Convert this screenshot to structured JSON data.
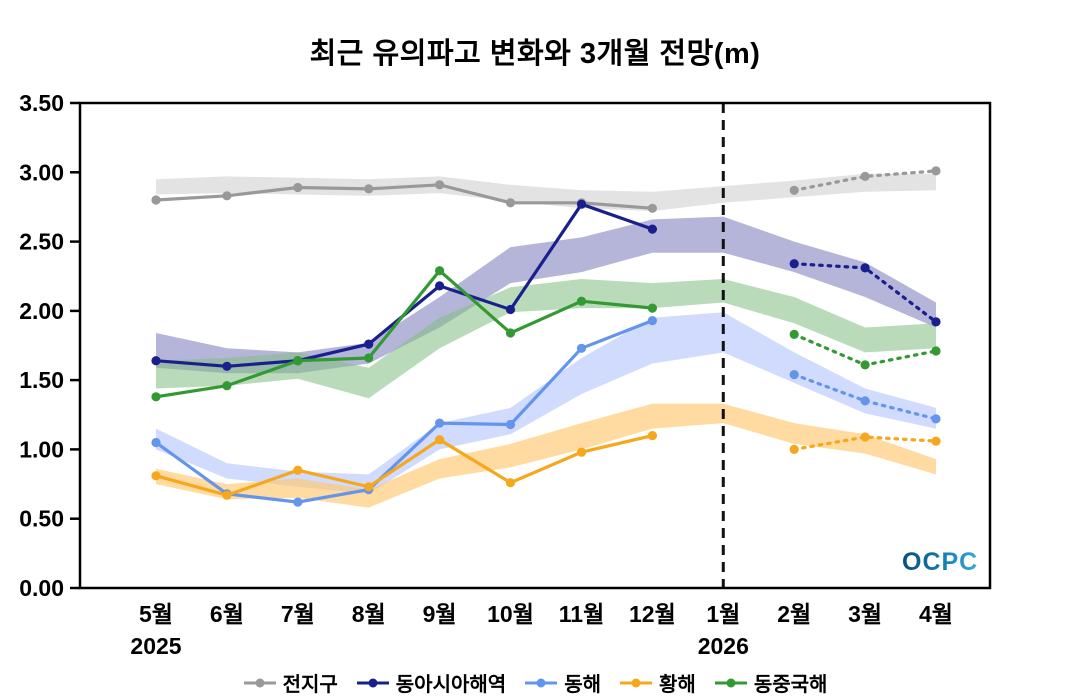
{
  "title": "최근 유의파고 변화와 3개월 전망(m)",
  "logo_text": "OCPC",
  "chart_data": {
    "type": "line",
    "title": "최근 유의파고 변화와 3개월 전망(m)",
    "x": [
      "5월",
      "6월",
      "7월",
      "8월",
      "9월",
      "10월",
      "11월",
      "12월",
      "1월",
      "2월",
      "3월",
      "4월"
    ],
    "year_labels": [
      {
        "index": 0,
        "label": "2025"
      },
      {
        "index": 8,
        "label": "2026"
      }
    ],
    "ylim": [
      0,
      3.5
    ],
    "yticks": [
      "0.00",
      "0.50",
      "1.00",
      "1.50",
      "2.00",
      "2.50",
      "3.00",
      "3.50"
    ],
    "forecast_divider_index": 8,
    "forecast_start_index": 9,
    "legend_position": "bottom",
    "grid": false,
    "series": [
      {
        "name": "전지구",
        "key": "global",
        "color": "#999999",
        "band_color": "rgba(204,204,204,0.55)",
        "observed": [
          2.8,
          2.83,
          2.89,
          2.88,
          2.91,
          2.78,
          2.78,
          2.74
        ],
        "forecast": [
          2.87,
          2.97,
          3.01
        ],
        "band_low": [
          2.84,
          2.85,
          2.84,
          2.83,
          2.85,
          2.79,
          2.74,
          2.72,
          2.78,
          2.82,
          2.86,
          2.87
        ],
        "band_high": [
          2.95,
          2.97,
          2.96,
          2.95,
          2.97,
          2.91,
          2.87,
          2.86,
          2.9,
          2.94,
          2.99,
          2.99
        ]
      },
      {
        "name": "동아시아해역",
        "key": "east-asia",
        "color": "#1a1f8e",
        "band_color": "rgba(120,120,185,0.55)",
        "observed": [
          1.64,
          1.6,
          1.64,
          1.76,
          2.18,
          2.01,
          2.77,
          2.59
        ],
        "forecast": [
          2.34,
          2.31,
          1.92
        ],
        "band_low": [
          1.59,
          1.55,
          1.55,
          1.62,
          1.88,
          2.2,
          2.28,
          2.42,
          2.42,
          2.28,
          2.1,
          1.88
        ],
        "band_high": [
          1.84,
          1.73,
          1.7,
          1.77,
          2.1,
          2.46,
          2.53,
          2.66,
          2.68,
          2.5,
          2.35,
          2.06
        ]
      },
      {
        "name": "동해",
        "key": "east-sea",
        "color": "#6495ed",
        "band_color": "rgba(150,175,250,0.45)",
        "observed": [
          1.05,
          0.68,
          0.62,
          0.71,
          1.19,
          1.18,
          1.73,
          1.93
        ],
        "forecast": [
          1.54,
          1.35,
          1.22
        ],
        "band_low": [
          1.0,
          0.79,
          0.73,
          0.68,
          1.0,
          1.11,
          1.4,
          1.62,
          1.7,
          1.48,
          1.26,
          1.15
        ],
        "band_high": [
          1.15,
          0.9,
          0.84,
          0.82,
          1.19,
          1.3,
          1.66,
          1.95,
          1.99,
          1.7,
          1.44,
          1.3
        ]
      },
      {
        "name": "황해",
        "key": "yellow-sea",
        "color": "#f7a71b",
        "band_color": "rgba(255,200,110,0.65)",
        "observed": [
          0.81,
          0.67,
          0.85,
          0.73,
          1.07,
          0.76,
          0.98,
          1.1
        ],
        "forecast": [
          1.0,
          1.09,
          1.06
        ],
        "band_low": [
          0.75,
          0.64,
          0.65,
          0.58,
          0.79,
          0.87,
          1.0,
          1.15,
          1.19,
          1.04,
          0.97,
          0.82
        ],
        "band_high": [
          0.86,
          0.75,
          0.79,
          0.71,
          0.93,
          1.04,
          1.19,
          1.33,
          1.33,
          1.19,
          1.11,
          0.93
        ]
      },
      {
        "name": "동중국해",
        "key": "east-china-sea",
        "color": "#339933",
        "band_color": "rgba(130,190,130,0.55)",
        "observed": [
          1.38,
          1.46,
          1.64,
          1.66,
          2.29,
          1.84,
          2.07,
          2.02
        ],
        "forecast": [
          1.83,
          1.61,
          1.71
        ],
        "band_low": [
          1.44,
          1.46,
          1.51,
          1.37,
          1.73,
          1.99,
          2.02,
          2.02,
          2.06,
          1.91,
          1.7,
          1.73
        ],
        "band_high": [
          1.64,
          1.66,
          1.7,
          1.59,
          1.95,
          2.17,
          2.23,
          2.2,
          2.23,
          2.1,
          1.88,
          1.91
        ]
      }
    ]
  }
}
